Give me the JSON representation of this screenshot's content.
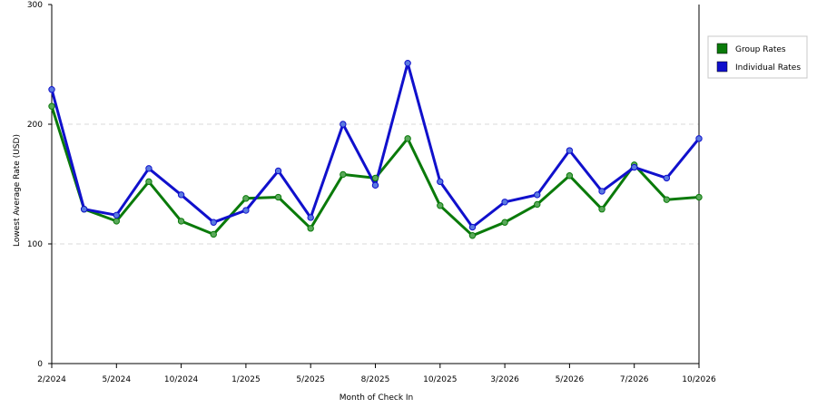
{
  "chart_data": {
    "type": "line",
    "title": "",
    "xlabel": "Month of Check In",
    "ylabel": "Lowest Average Rate (USD)",
    "ylim": [
      0,
      300
    ],
    "y_ticks": [
      "0",
      "100",
      "200",
      "300"
    ],
    "grid": true,
    "legend_position": "right",
    "x_tick_labels": [
      "2/2024",
      "5/2024",
      "10/2024",
      "1/2025",
      "5/2025",
      "8/2025",
      "10/2025",
      "3/2026",
      "5/2026",
      "7/2026",
      "10/2026"
    ],
    "series": [
      {
        "name": "Group Rates",
        "color": "#0a7a0a",
        "values": [
          215,
          129,
          119,
          152,
          119,
          108,
          138,
          139,
          113,
          158,
          155,
          188,
          132,
          107,
          118,
          133,
          157,
          129,
          166,
          137,
          139
        ]
      },
      {
        "name": "Individual Rates",
        "color": "#1010cc",
        "values": [
          229,
          129,
          124,
          163,
          141,
          118,
          128,
          161,
          122,
          200,
          149,
          251,
          152,
          114,
          135,
          141,
          178,
          144,
          164,
          155,
          188
        ]
      }
    ]
  }
}
